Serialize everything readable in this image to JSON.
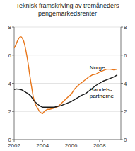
{
  "chart_data": {
    "type": "line",
    "title": "Teknisk framskriving av tremåneders\npengemarkedsrenter",
    "xlim": [
      2002.0,
      2009.5
    ],
    "xticks": [
      2002,
      2004,
      2006,
      2008
    ],
    "ylim": [
      0,
      8
    ],
    "yticks": [
      0,
      2,
      4,
      6,
      8
    ],
    "y2lim": [
      0,
      8
    ],
    "y2ticks": [
      0,
      2,
      4,
      6,
      8
    ],
    "grid": true,
    "series": [
      {
        "color": "#E8761A",
        "x": [
          2002.0,
          2002.08,
          2002.17,
          2002.25,
          2002.33,
          2002.42,
          2002.5,
          2002.58,
          2002.67,
          2002.75,
          2002.83,
          2002.92,
          2003.0,
          2003.08,
          2003.17,
          2003.25,
          2003.33,
          2003.42,
          2003.5,
          2003.58,
          2003.67,
          2003.75,
          2003.83,
          2003.92,
          2004.0,
          2004.08,
          2004.17,
          2004.25,
          2004.33,
          2004.5,
          2004.67,
          2004.83,
          2005.0,
          2005.25,
          2005.5,
          2005.75,
          2006.0,
          2006.25,
          2006.5,
          2006.75,
          2007.0,
          2007.25,
          2007.5,
          2007.75,
          2008.0,
          2008.25,
          2008.5,
          2008.75,
          2009.0,
          2009.25
        ],
        "values": [
          6.5,
          6.65,
          6.85,
          7.05,
          7.2,
          7.3,
          7.3,
          7.2,
          7.0,
          6.7,
          6.3,
          5.8,
          5.3,
          4.7,
          4.1,
          3.6,
          3.1,
          2.75,
          2.5,
          2.35,
          2.2,
          2.05,
          1.95,
          1.88,
          1.85,
          1.95,
          2.05,
          2.1,
          2.15,
          2.15,
          2.2,
          2.25,
          2.3,
          2.5,
          2.75,
          3.0,
          3.2,
          3.6,
          3.85,
          4.05,
          4.25,
          4.45,
          4.6,
          4.65,
          4.8,
          4.9,
          5.0,
          5.0,
          4.95,
          5.0
        ]
      },
      {
        "color": "#1a1a1a",
        "x": [
          2002.0,
          2002.17,
          2002.33,
          2002.5,
          2002.67,
          2002.83,
          2003.0,
          2003.17,
          2003.33,
          2003.5,
          2003.67,
          2003.83,
          2004.0,
          2004.17,
          2004.33,
          2004.5,
          2004.67,
          2004.83,
          2005.0,
          2005.25,
          2005.5,
          2005.75,
          2006.0,
          2006.25,
          2006.5,
          2006.75,
          2007.0,
          2007.25,
          2007.5,
          2007.75,
          2008.0,
          2008.25,
          2008.5,
          2008.75,
          2009.0,
          2009.25
        ],
        "values": [
          3.55,
          3.6,
          3.58,
          3.55,
          3.45,
          3.35,
          3.25,
          3.1,
          2.85,
          2.65,
          2.5,
          2.38,
          2.3,
          2.3,
          2.3,
          2.3,
          2.3,
          2.3,
          2.35,
          2.4,
          2.5,
          2.6,
          2.7,
          2.85,
          3.0,
          3.15,
          3.25,
          3.45,
          3.65,
          3.85,
          4.0,
          4.15,
          4.25,
          4.35,
          4.45,
          4.6
        ]
      }
    ],
    "annotations": [
      {
        "text": "Norge",
        "x": 2007.3,
        "y": 4.9
      },
      {
        "text": "Handels-\npartnerne",
        "x": 2007.3,
        "y": 3.75
      }
    ]
  }
}
